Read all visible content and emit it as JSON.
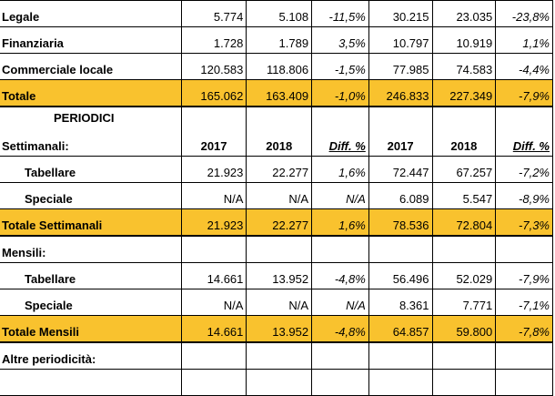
{
  "rows_top": [
    {
      "label": "Legale",
      "v2017a": "5.774",
      "v2018a": "5.108",
      "diffa": "-11,5%",
      "v2017b": "30.215",
      "v2018b": "23.035",
      "diffb": "-23,8%"
    },
    {
      "label": "Finanziaria",
      "v2017a": "1.728",
      "v2018a": "1.789",
      "diffa": "3,5%",
      "v2017b": "10.797",
      "v2018b": "10.919",
      "diffb": "1,1%"
    },
    {
      "label": "Commerciale locale",
      "v2017a": "120.583",
      "v2018a": "118.806",
      "diffa": "-1,5%",
      "v2017b": "77.985",
      "v2018b": "74.583",
      "diffb": "-4,4%"
    }
  ],
  "totale": {
    "label": "Totale",
    "v2017a": "165.062",
    "v2018a": "163.409",
    "diffa": "-1,0%",
    "v2017b": "246.833",
    "v2018b": "227.349",
    "diffb": "-7,9%"
  },
  "periodici_title": "PERIODICI",
  "settimanali_header": {
    "label": "Settimanali:",
    "y1": "2017",
    "y2": "2018",
    "diff": "Diff. %",
    "y3": "2017",
    "y4": "2018",
    "diff2": "Diff. %"
  },
  "settimanali": [
    {
      "label": "Tabellare",
      "v2017a": "21.923",
      "v2018a": "22.277",
      "diffa": "1,6%",
      "v2017b": "72.447",
      "v2018b": "67.257",
      "diffb": "-7,2%"
    },
    {
      "label": "Speciale",
      "v2017a": "N/A",
      "v2018a": "N/A",
      "diffa": "N/A",
      "v2017b": "6.089",
      "v2018b": "5.547",
      "diffb": "-8,9%"
    }
  ],
  "totale_settimanali": {
    "label": "Totale Settimanali",
    "v2017a": "21.923",
    "v2018a": "22.277",
    "diffa": "1,6%",
    "v2017b": "78.536",
    "v2018b": "72.804",
    "diffb": "-7,3%"
  },
  "mensili_label": "Mensili:",
  "mensili": [
    {
      "label": "Tabellare",
      "v2017a": "14.661",
      "v2018a": "13.952",
      "diffa": "-4,8%",
      "v2017b": "56.496",
      "v2018b": "52.029",
      "diffb": "-7,9%"
    },
    {
      "label": "Speciale",
      "v2017a": "N/A",
      "v2018a": "N/A",
      "diffa": "N/A",
      "v2017b": "8.361",
      "v2018b": "7.771",
      "diffb": "-7,1%"
    }
  ],
  "totale_mensili": {
    "label": "Totale Mensili",
    "v2017a": "14.661",
    "v2018a": "13.952",
    "diffa": "-4,8%",
    "v2017b": "64.857",
    "v2018b": "59.800",
    "diffb": "-7,8%"
  },
  "altre_label": "Altre periodicità:",
  "colors": {
    "highlight": "#F9C22E"
  }
}
